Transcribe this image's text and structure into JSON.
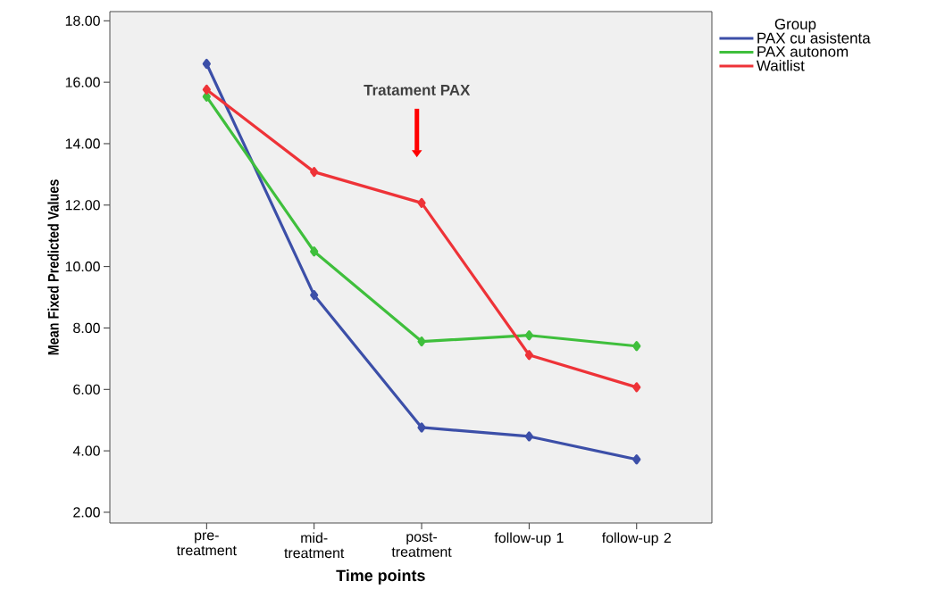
{
  "chart_data": {
    "type": "line",
    "xlabel": "Time points",
    "ylabel": "Mean Fixed Predicted Values",
    "legend_title": "Group",
    "categories": [
      "pre-treatment",
      "mid-treatment",
      "post-treatment",
      "follow-up 1",
      "follow-up 2"
    ],
    "series": [
      {
        "name": "PAX cu asistenta",
        "color": "#3c4fa8",
        "values": [
          16.6,
          9.07,
          4.76,
          4.47,
          3.72
        ]
      },
      {
        "name": "PAX autonom",
        "color": "#3fbf3c",
        "values": [
          15.53,
          10.49,
          7.56,
          7.76,
          7.41
        ]
      },
      {
        "name": "Waitlist",
        "color": "#ee3338",
        "values": [
          15.76,
          13.08,
          12.07,
          7.12,
          6.07
        ]
      }
    ],
    "ylim": [
      1.65,
      18.3
    ],
    "yticks": [
      {
        "value": 2,
        "label": "2.00"
      },
      {
        "value": 4,
        "label": "4.00"
      },
      {
        "value": 6,
        "label": "6.00"
      },
      {
        "value": 8,
        "label": "8.00"
      },
      {
        "value": 10,
        "label": "10.00"
      },
      {
        "value": 12,
        "label": "12.00"
      },
      {
        "value": 14,
        "label": "14.00"
      },
      {
        "value": 16,
        "label": "16.00"
      },
      {
        "value": 18,
        "label": "18.00"
      }
    ],
    "annotations": [
      "Tratament PAX"
    ],
    "marker": "diamond",
    "line_style": "solid",
    "grid": false,
    "legend": "top right"
  }
}
